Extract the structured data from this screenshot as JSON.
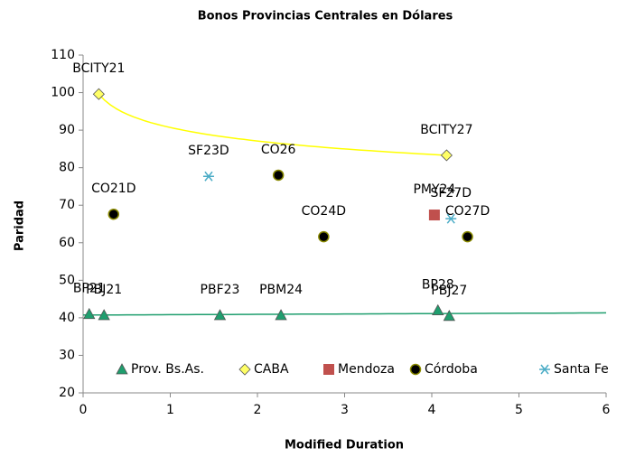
{
  "chart_data": {
    "type": "scatter",
    "title": "Bonos Provincias Centrales en Dólares",
    "x_label": "Modified Duration",
    "y_label": "Paridad",
    "xlim": [
      0,
      6
    ],
    "xticks": [
      0,
      1,
      2,
      3,
      4,
      5,
      6
    ],
    "ylim": [
      20,
      110
    ],
    "yticks": [
      20,
      30,
      40,
      50,
      60,
      70,
      80,
      90,
      100,
      110
    ],
    "grid": false,
    "legend": "bottom",
    "series": [
      {
        "name": "Prov. Bs.As.",
        "marker": "triangle",
        "color": "#1f9e6e",
        "x": [
          0.07,
          0.24,
          1.57,
          2.27,
          4.07,
          4.2
        ],
        "values": [
          41,
          40.7,
          40.7,
          40.7,
          42,
          40.5
        ],
        "labels": [
          "BP21",
          "PBJ21",
          "PBF23",
          "PBM24",
          "BP28",
          "PBJ27"
        ]
      },
      {
        "name": "CABA",
        "marker": "diamond",
        "color": "#ffff66",
        "x": [
          0.18,
          4.17
        ],
        "values": [
          99.6,
          83.3
        ],
        "labels": [
          "BCITY21",
          "BCITY27"
        ]
      },
      {
        "name": "Mendoza",
        "marker": "square",
        "color": "#c0504d",
        "x": [
          4.03
        ],
        "values": [
          67.4
        ],
        "labels": [
          "PMY24"
        ]
      },
      {
        "name": "Córdoba",
        "marker": "circle",
        "color": "#000000",
        "x": [
          0.35,
          2.24,
          2.76,
          4.41
        ],
        "values": [
          67.6,
          78,
          61.6,
          61.6
        ],
        "labels": [
          "CO21D",
          "CO26",
          "CO24D",
          "CO27D"
        ]
      },
      {
        "name": "Santa Fe",
        "marker": "asterisk",
        "color": "#4bacc6",
        "x": [
          1.44,
          4.22
        ],
        "values": [
          77.7,
          66.4
        ],
        "labels": [
          "SF23D",
          "SF27D"
        ]
      }
    ],
    "trendlines": [
      {
        "series": "CABA",
        "kind": "logarithmic",
        "color": "#ffff00"
      },
      {
        "series": "Prov. Bs.As.",
        "kind": "linear",
        "color": "#1f9e6e"
      }
    ]
  }
}
